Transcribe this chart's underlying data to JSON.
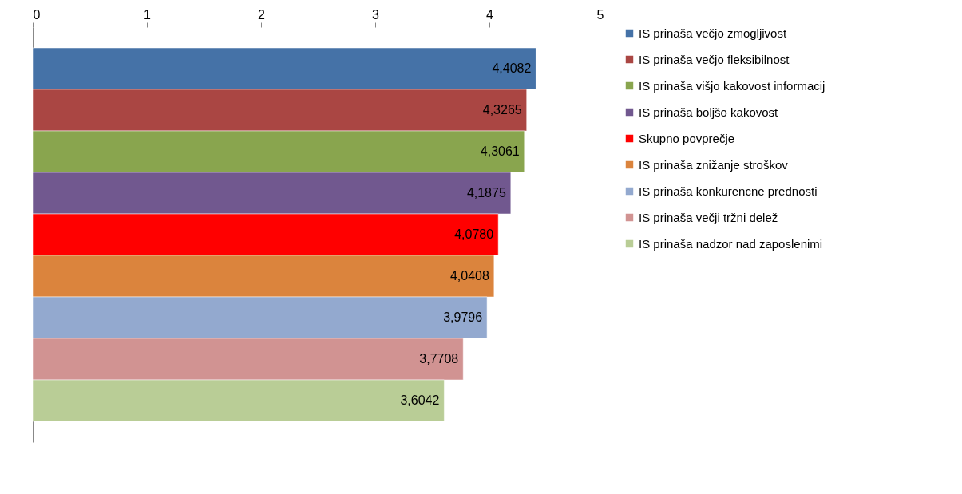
{
  "chart_data": {
    "type": "bar",
    "orientation": "horizontal",
    "categories": [
      null
    ],
    "series": [
      {
        "name": "IS prinaša večjo zmogljivost",
        "color": "#4572a7",
        "values": [
          4.4082
        ],
        "value_labels": [
          "4,4082"
        ]
      },
      {
        "name": "IS prinaša večjo fleksibilnost",
        "color": "#aa4643",
        "values": [
          4.3265
        ],
        "value_labels": [
          "4,3265"
        ]
      },
      {
        "name": "IS prinaša višjo kakovost informacij",
        "color": "#89a54e",
        "values": [
          4.3061
        ],
        "value_labels": [
          "4,3061"
        ]
      },
      {
        "name": "IS prinaša boljšo kakovost",
        "color": "#71588f",
        "values": [
          4.1875
        ],
        "value_labels": [
          "4,1875"
        ]
      },
      {
        "name": "Skupno povprečje",
        "color": "#ff0000",
        "values": [
          4.078
        ],
        "value_labels": [
          "4,0780"
        ]
      },
      {
        "name": "IS prinaša znižanje stroškov",
        "color": "#db843d",
        "values": [
          4.0408
        ],
        "value_labels": [
          "4,0408"
        ]
      },
      {
        "name": "IS prinaša konkurencne prednosti",
        "color": "#93a9cf",
        "values": [
          3.9796
        ],
        "value_labels": [
          "3,9796"
        ]
      },
      {
        "name": "IS prinaša večji tržni delež",
        "color": "#d19392",
        "values": [
          3.7708
        ],
        "value_labels": [
          "3,7708"
        ]
      },
      {
        "name": "IS prinaša nadzor nad zaposlenimi",
        "color": "#b9cd96",
        "values": [
          3.6042
        ],
        "value_labels": [
          "3,6042"
        ]
      }
    ],
    "xlim": [
      0,
      5
    ],
    "xticks": [
      0,
      1,
      2,
      3,
      4,
      5
    ],
    "grid": false,
    "legend": "right",
    "tick_labels": "x"
  }
}
